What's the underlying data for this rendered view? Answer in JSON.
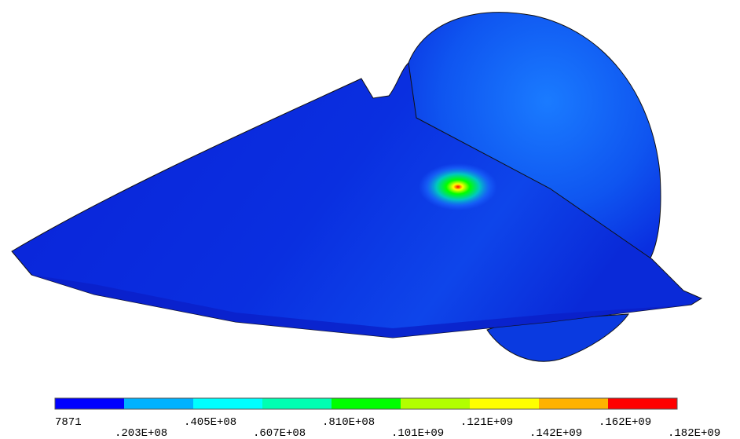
{
  "legend": {
    "colors": [
      "#0000ff",
      "#00b2ff",
      "#00ffff",
      "#00ffb2",
      "#00ff00",
      "#b2ff00",
      "#ffff00",
      "#ffb200",
      "#ff0000"
    ],
    "labels": [
      "7871",
      ".203E+08",
      ".405E+08",
      ".607E+08",
      ".810E+08",
      ".101E+09",
      ".121E+09",
      ".142E+09",
      ".162E+09",
      ".182E+09"
    ]
  }
}
